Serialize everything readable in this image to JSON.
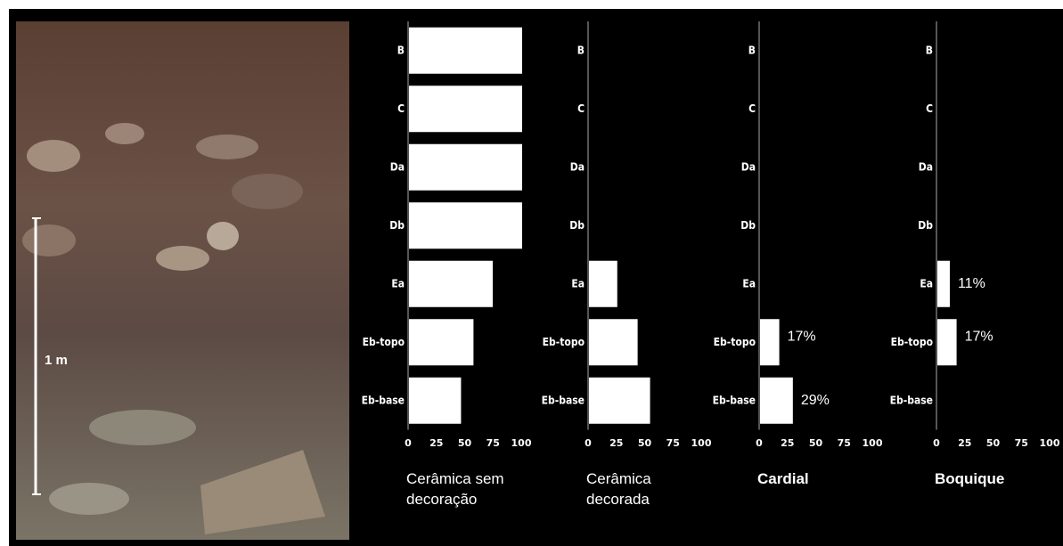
{
  "photo_scale_label": "1 m",
  "chart_data": [
    {
      "type": "bar",
      "orientation": "horizontal",
      "title": "Cerâmica sem decoração",
      "title_bold": false,
      "color": "#ffffff",
      "categories": [
        "B",
        "C",
        "Da",
        "Db",
        "Ea",
        "Eb-topo",
        "Eb-base"
      ],
      "values": [
        100,
        100,
        100,
        100,
        74,
        57,
        46
      ],
      "xlim": [
        0,
        100
      ],
      "xticks": [
        0,
        25,
        50,
        75,
        100
      ]
    },
    {
      "type": "bar",
      "orientation": "horizontal",
      "title": "Cerâmica decorada",
      "title_bold": false,
      "color": "#ffffff",
      "categories": [
        "B",
        "C",
        "Da",
        "Db",
        "Ea",
        "Eb-topo",
        "Eb-base"
      ],
      "values": [
        0,
        0,
        0,
        0,
        25,
        43,
        54
      ],
      "xlim": [
        0,
        100
      ],
      "xticks": [
        0,
        25,
        50,
        75,
        100
      ]
    },
    {
      "type": "bar",
      "orientation": "horizontal",
      "title": "Cardial",
      "title_bold": true,
      "color": "#ffffff",
      "categories": [
        "B",
        "C",
        "Da",
        "Db",
        "Ea",
        "Eb-topo",
        "Eb-base"
      ],
      "values": [
        0,
        0,
        0,
        0,
        0,
        17,
        29
      ],
      "value_labels": [
        null,
        null,
        null,
        null,
        null,
        "17%",
        "29%"
      ],
      "xlim": [
        0,
        100
      ],
      "xticks": [
        0,
        25,
        50,
        75,
        100
      ]
    },
    {
      "type": "bar",
      "orientation": "horizontal",
      "title": "Boquique",
      "title_bold": true,
      "color": "#ffffff",
      "categories": [
        "B",
        "C",
        "Da",
        "Db",
        "Ea",
        "Eb-topo",
        "Eb-base"
      ],
      "values": [
        0,
        0,
        0,
        0,
        11,
        17,
        0
      ],
      "value_labels": [
        null,
        null,
        null,
        null,
        "11%",
        "17%",
        null
      ],
      "xlim": [
        0,
        100
      ],
      "xticks": [
        0,
        25,
        50,
        75,
        100
      ]
    }
  ]
}
